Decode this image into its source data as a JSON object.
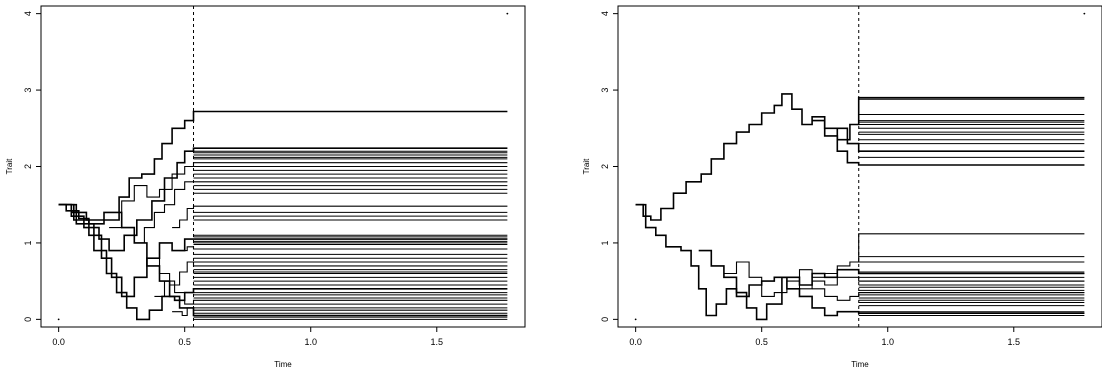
{
  "chart_data": [
    {
      "type": "line",
      "step": true,
      "xlabel": "Time",
      "ylabel": "Trait",
      "xlim": [
        -0.07,
        1.85
      ],
      "ylim": [
        -0.1,
        4.1
      ],
      "xticks": [
        0.0,
        0.5,
        1.0,
        1.5
      ],
      "xtick_labels": [
        "0.0",
        "0.5",
        "1.0",
        "1.5"
      ],
      "yticks": [
        0,
        1,
        2,
        3,
        4
      ],
      "ytick_labels": [
        "0",
        "1",
        "2",
        "3",
        "4"
      ],
      "vline_x": 0.535,
      "x_end": 1.78,
      "corner_points": [
        [
          0.0,
          0.0
        ],
        [
          1.78,
          4.0
        ]
      ],
      "grid": false,
      "series": [
        {
          "values": [
            [
              0.0,
              1.5
            ],
            [
              0.03,
              1.42
            ],
            [
              0.08,
              1.32
            ],
            [
              0.12,
              1.25
            ],
            [
              0.18,
              1.3
            ],
            [
              0.24,
              1.6
            ],
            [
              0.28,
              1.85
            ],
            [
              0.33,
              1.9
            ],
            [
              0.38,
              2.1
            ],
            [
              0.41,
              2.3
            ],
            [
              0.45,
              2.5
            ],
            [
              0.5,
              2.6
            ],
            [
              0.535,
              2.72
            ],
            [
              1.78,
              2.72
            ]
          ]
        },
        {
          "values": [
            [
              0.0,
              1.5
            ],
            [
              0.05,
              1.35
            ],
            [
              0.1,
              1.2
            ],
            [
              0.16,
              1.05
            ],
            [
              0.2,
              0.9
            ],
            [
              0.26,
              1.1
            ],
            [
              0.31,
              1.3
            ],
            [
              0.37,
              1.55
            ],
            [
              0.42,
              1.85
            ],
            [
              0.47,
              2.05
            ],
            [
              0.5,
              2.2
            ],
            [
              0.535,
              2.24
            ],
            [
              1.78,
              2.24
            ]
          ]
        },
        {
          "values": [
            [
              0.0,
              1.5
            ],
            [
              0.06,
              1.3
            ],
            [
              0.12,
              1.1
            ],
            [
              0.17,
              0.8
            ],
            [
              0.21,
              0.55
            ],
            [
              0.25,
              0.3
            ],
            [
              0.3,
              0.55
            ],
            [
              0.35,
              0.8
            ],
            [
              0.4,
              1.0
            ],
            [
              0.45,
              0.9
            ],
            [
              0.5,
              1.05
            ],
            [
              0.535,
              1.05
            ],
            [
              1.78,
              1.05
            ]
          ]
        },
        {
          "values": [
            [
              0.0,
              1.5
            ],
            [
              0.07,
              1.25
            ],
            [
              0.14,
              0.9
            ],
            [
              0.19,
              0.6
            ],
            [
              0.23,
              0.35
            ],
            [
              0.27,
              0.15
            ],
            [
              0.31,
              0.0
            ],
            [
              0.36,
              0.12
            ],
            [
              0.41,
              0.3
            ],
            [
              0.46,
              0.25
            ],
            [
              0.5,
              0.35
            ],
            [
              0.535,
              0.4
            ],
            [
              1.78,
              0.4
            ]
          ]
        },
        {
          "values": [
            [
              0.0,
              1.5
            ],
            [
              0.05,
              1.4
            ],
            [
              0.11,
              1.3
            ],
            [
              0.18,
              1.4
            ],
            [
              0.25,
              1.2
            ],
            [
              0.3,
              1.0
            ],
            [
              0.35,
              0.7
            ],
            [
              0.4,
              0.5
            ],
            [
              0.44,
              0.3
            ],
            [
              0.48,
              0.15
            ],
            [
              0.535,
              0.05
            ],
            [
              1.78,
              0.05
            ]
          ]
        },
        {
          "values": [
            [
              0.2,
              1.2
            ],
            [
              0.25,
              1.55
            ],
            [
              0.3,
              1.75
            ],
            [
              0.35,
              1.6
            ],
            [
              0.4,
              1.7
            ],
            [
              0.45,
              1.9
            ],
            [
              0.5,
              2.0
            ],
            [
              0.535,
              2.05
            ],
            [
              1.78,
              2.05
            ]
          ]
        },
        {
          "values": [
            [
              0.3,
              1.0
            ],
            [
              0.34,
              1.2
            ],
            [
              0.38,
              1.4
            ],
            [
              0.42,
              1.5
            ],
            [
              0.46,
              1.7
            ],
            [
              0.5,
              1.8
            ],
            [
              0.535,
              1.8
            ],
            [
              1.78,
              1.8
            ]
          ]
        },
        {
          "values": [
            [
              0.35,
              0.8
            ],
            [
              0.4,
              0.6
            ],
            [
              0.44,
              0.45
            ],
            [
              0.48,
              0.62
            ],
            [
              0.51,
              0.75
            ],
            [
              0.535,
              0.7
            ],
            [
              1.78,
              0.7
            ]
          ]
        },
        {
          "values": [
            [
              0.38,
              0.3
            ],
            [
              0.42,
              0.5
            ],
            [
              0.46,
              0.35
            ],
            [
              0.5,
              0.2
            ],
            [
              0.535,
              0.25
            ],
            [
              1.78,
              0.25
            ]
          ]
        },
        {
          "values": [
            [
              0.45,
              1.2
            ],
            [
              0.48,
              1.3
            ],
            [
              0.51,
              1.45
            ],
            [
              0.535,
              1.48
            ],
            [
              1.78,
              1.48
            ]
          ]
        },
        {
          "values": [
            [
              0.45,
              0.1
            ],
            [
              0.49,
              0.05
            ],
            [
              0.51,
              0.15
            ],
            [
              0.535,
              0.12
            ],
            [
              1.78,
              0.12
            ]
          ]
        },
        {
          "values": [
            [
              0.48,
              0.9
            ],
            [
              0.51,
              0.95
            ],
            [
              0.535,
              0.92
            ],
            [
              1.78,
              0.92
            ]
          ]
        }
      ],
      "terminal_values": [
        0.0,
        0.03,
        0.08,
        0.15,
        0.2,
        0.28,
        0.32,
        0.35,
        0.45,
        0.5,
        0.55,
        0.6,
        0.62,
        0.65,
        0.75,
        0.8,
        0.85,
        0.98,
        1.0,
        1.02,
        1.08,
        1.1,
        1.3,
        1.35,
        1.4,
        1.65,
        1.7,
        1.75,
        1.85,
        1.9,
        1.95,
        2.0,
        2.1,
        2.12,
        2.15,
        2.18,
        2.2
      ]
    },
    {
      "type": "line",
      "step": true,
      "xlabel": "Time",
      "ylabel": "Trait",
      "xlim": [
        -0.07,
        1.85
      ],
      "ylim": [
        -0.1,
        4.1
      ],
      "xticks": [
        0.0,
        0.5,
        1.0,
        1.5
      ],
      "xtick_labels": [
        "0.0",
        "0.5",
        "1.0",
        "1.5"
      ],
      "yticks": [
        0,
        1,
        2,
        3,
        4
      ],
      "ytick_labels": [
        "0",
        "1",
        "2",
        "3",
        "4"
      ],
      "vline_x": 0.885,
      "x_end": 1.78,
      "corner_points": [
        [
          0.0,
          0.0
        ],
        [
          1.78,
          4.0
        ]
      ],
      "grid": false,
      "series": [
        {
          "values": [
            [
              0.0,
              1.5
            ],
            [
              0.03,
              1.35
            ],
            [
              0.06,
              1.3
            ],
            [
              0.1,
              1.45
            ],
            [
              0.15,
              1.65
            ],
            [
              0.2,
              1.8
            ],
            [
              0.26,
              1.9
            ],
            [
              0.3,
              2.1
            ],
            [
              0.35,
              2.3
            ],
            [
              0.4,
              2.45
            ],
            [
              0.45,
              2.55
            ],
            [
              0.5,
              2.7
            ],
            [
              0.55,
              2.8
            ],
            [
              0.58,
              2.95
            ],
            [
              0.62,
              2.75
            ],
            [
              0.66,
              2.55
            ],
            [
              0.7,
              2.65
            ],
            [
              0.75,
              2.5
            ],
            [
              0.8,
              2.35
            ],
            [
              0.85,
              2.55
            ],
            [
              0.885,
              2.9
            ],
            [
              1.78,
              2.9
            ]
          ]
        },
        {
          "values": [
            [
              0.7,
              2.6
            ],
            [
              0.75,
              2.4
            ],
            [
              0.8,
              2.2
            ],
            [
              0.84,
              2.05
            ],
            [
              0.885,
              2.02
            ],
            [
              1.78,
              2.02
            ]
          ]
        },
        {
          "values": [
            [
              0.8,
              2.5
            ],
            [
              0.84,
              2.3
            ],
            [
              0.885,
              2.2
            ],
            [
              1.78,
              2.2
            ]
          ]
        },
        {
          "values": [
            [
              0.0,
              1.5
            ],
            [
              0.04,
              1.2
            ],
            [
              0.08,
              1.1
            ],
            [
              0.12,
              0.95
            ],
            [
              0.18,
              0.9
            ],
            [
              0.22,
              0.7
            ],
            [
              0.25,
              0.4
            ],
            [
              0.28,
              0.05
            ],
            [
              0.32,
              0.2
            ],
            [
              0.36,
              0.4
            ],
            [
              0.4,
              0.3
            ],
            [
              0.45,
              0.45
            ],
            [
              0.5,
              0.5
            ],
            [
              0.55,
              0.55
            ],
            [
              0.6,
              0.4
            ],
            [
              0.65,
              0.3
            ],
            [
              0.7,
              0.15
            ],
            [
              0.75,
              0.05
            ],
            [
              0.8,
              0.1
            ],
            [
              0.885,
              0.08
            ],
            [
              1.78,
              0.08
            ]
          ]
        },
        {
          "values": [
            [
              0.25,
              0.9
            ],
            [
              0.3,
              0.7
            ],
            [
              0.35,
              0.55
            ],
            [
              0.4,
              0.35
            ],
            [
              0.44,
              0.15
            ],
            [
              0.48,
              0.0
            ],
            [
              0.52,
              0.2
            ],
            [
              0.58,
              0.55
            ],
            [
              0.65,
              0.45
            ],
            [
              0.7,
              0.6
            ],
            [
              0.75,
              0.55
            ],
            [
              0.8,
              0.65
            ],
            [
              0.885,
              0.6
            ],
            [
              1.78,
              0.6
            ]
          ]
        },
        {
          "values": [
            [
              0.35,
              0.6
            ],
            [
              0.4,
              0.75
            ],
            [
              0.45,
              0.55
            ],
            [
              0.5,
              0.3
            ],
            [
              0.55,
              0.35
            ],
            [
              0.6,
              0.5
            ],
            [
              0.65,
              0.4
            ],
            [
              0.7,
              0.5
            ],
            [
              0.75,
              0.45
            ],
            [
              0.8,
              0.55
            ],
            [
              0.885,
              0.5
            ],
            [
              1.78,
              0.5
            ]
          ]
        },
        {
          "values": [
            [
              0.6,
              0.55
            ],
            [
              0.65,
              0.65
            ],
            [
              0.7,
              0.55
            ],
            [
              0.75,
              0.6
            ],
            [
              0.8,
              0.7
            ],
            [
              0.85,
              0.75
            ],
            [
              0.885,
              1.12
            ],
            [
              1.78,
              1.12
            ]
          ]
        },
        {
          "values": [
            [
              0.7,
              0.4
            ],
            [
              0.75,
              0.3
            ],
            [
              0.8,
              0.25
            ],
            [
              0.85,
              0.3
            ],
            [
              0.885,
              0.35
            ],
            [
              1.78,
              0.35
            ]
          ]
        }
      ],
      "terminal_values": [
        2.02,
        2.12,
        2.2,
        2.3,
        2.35,
        2.42,
        2.45,
        2.5,
        2.55,
        2.58,
        2.6,
        2.68,
        2.88,
        0.05,
        0.08,
        0.1,
        0.18,
        0.22,
        0.25,
        0.28,
        0.32,
        0.35,
        0.38,
        0.42,
        0.45,
        0.5,
        0.55,
        0.6,
        0.62,
        0.75,
        0.82
      ]
    }
  ]
}
